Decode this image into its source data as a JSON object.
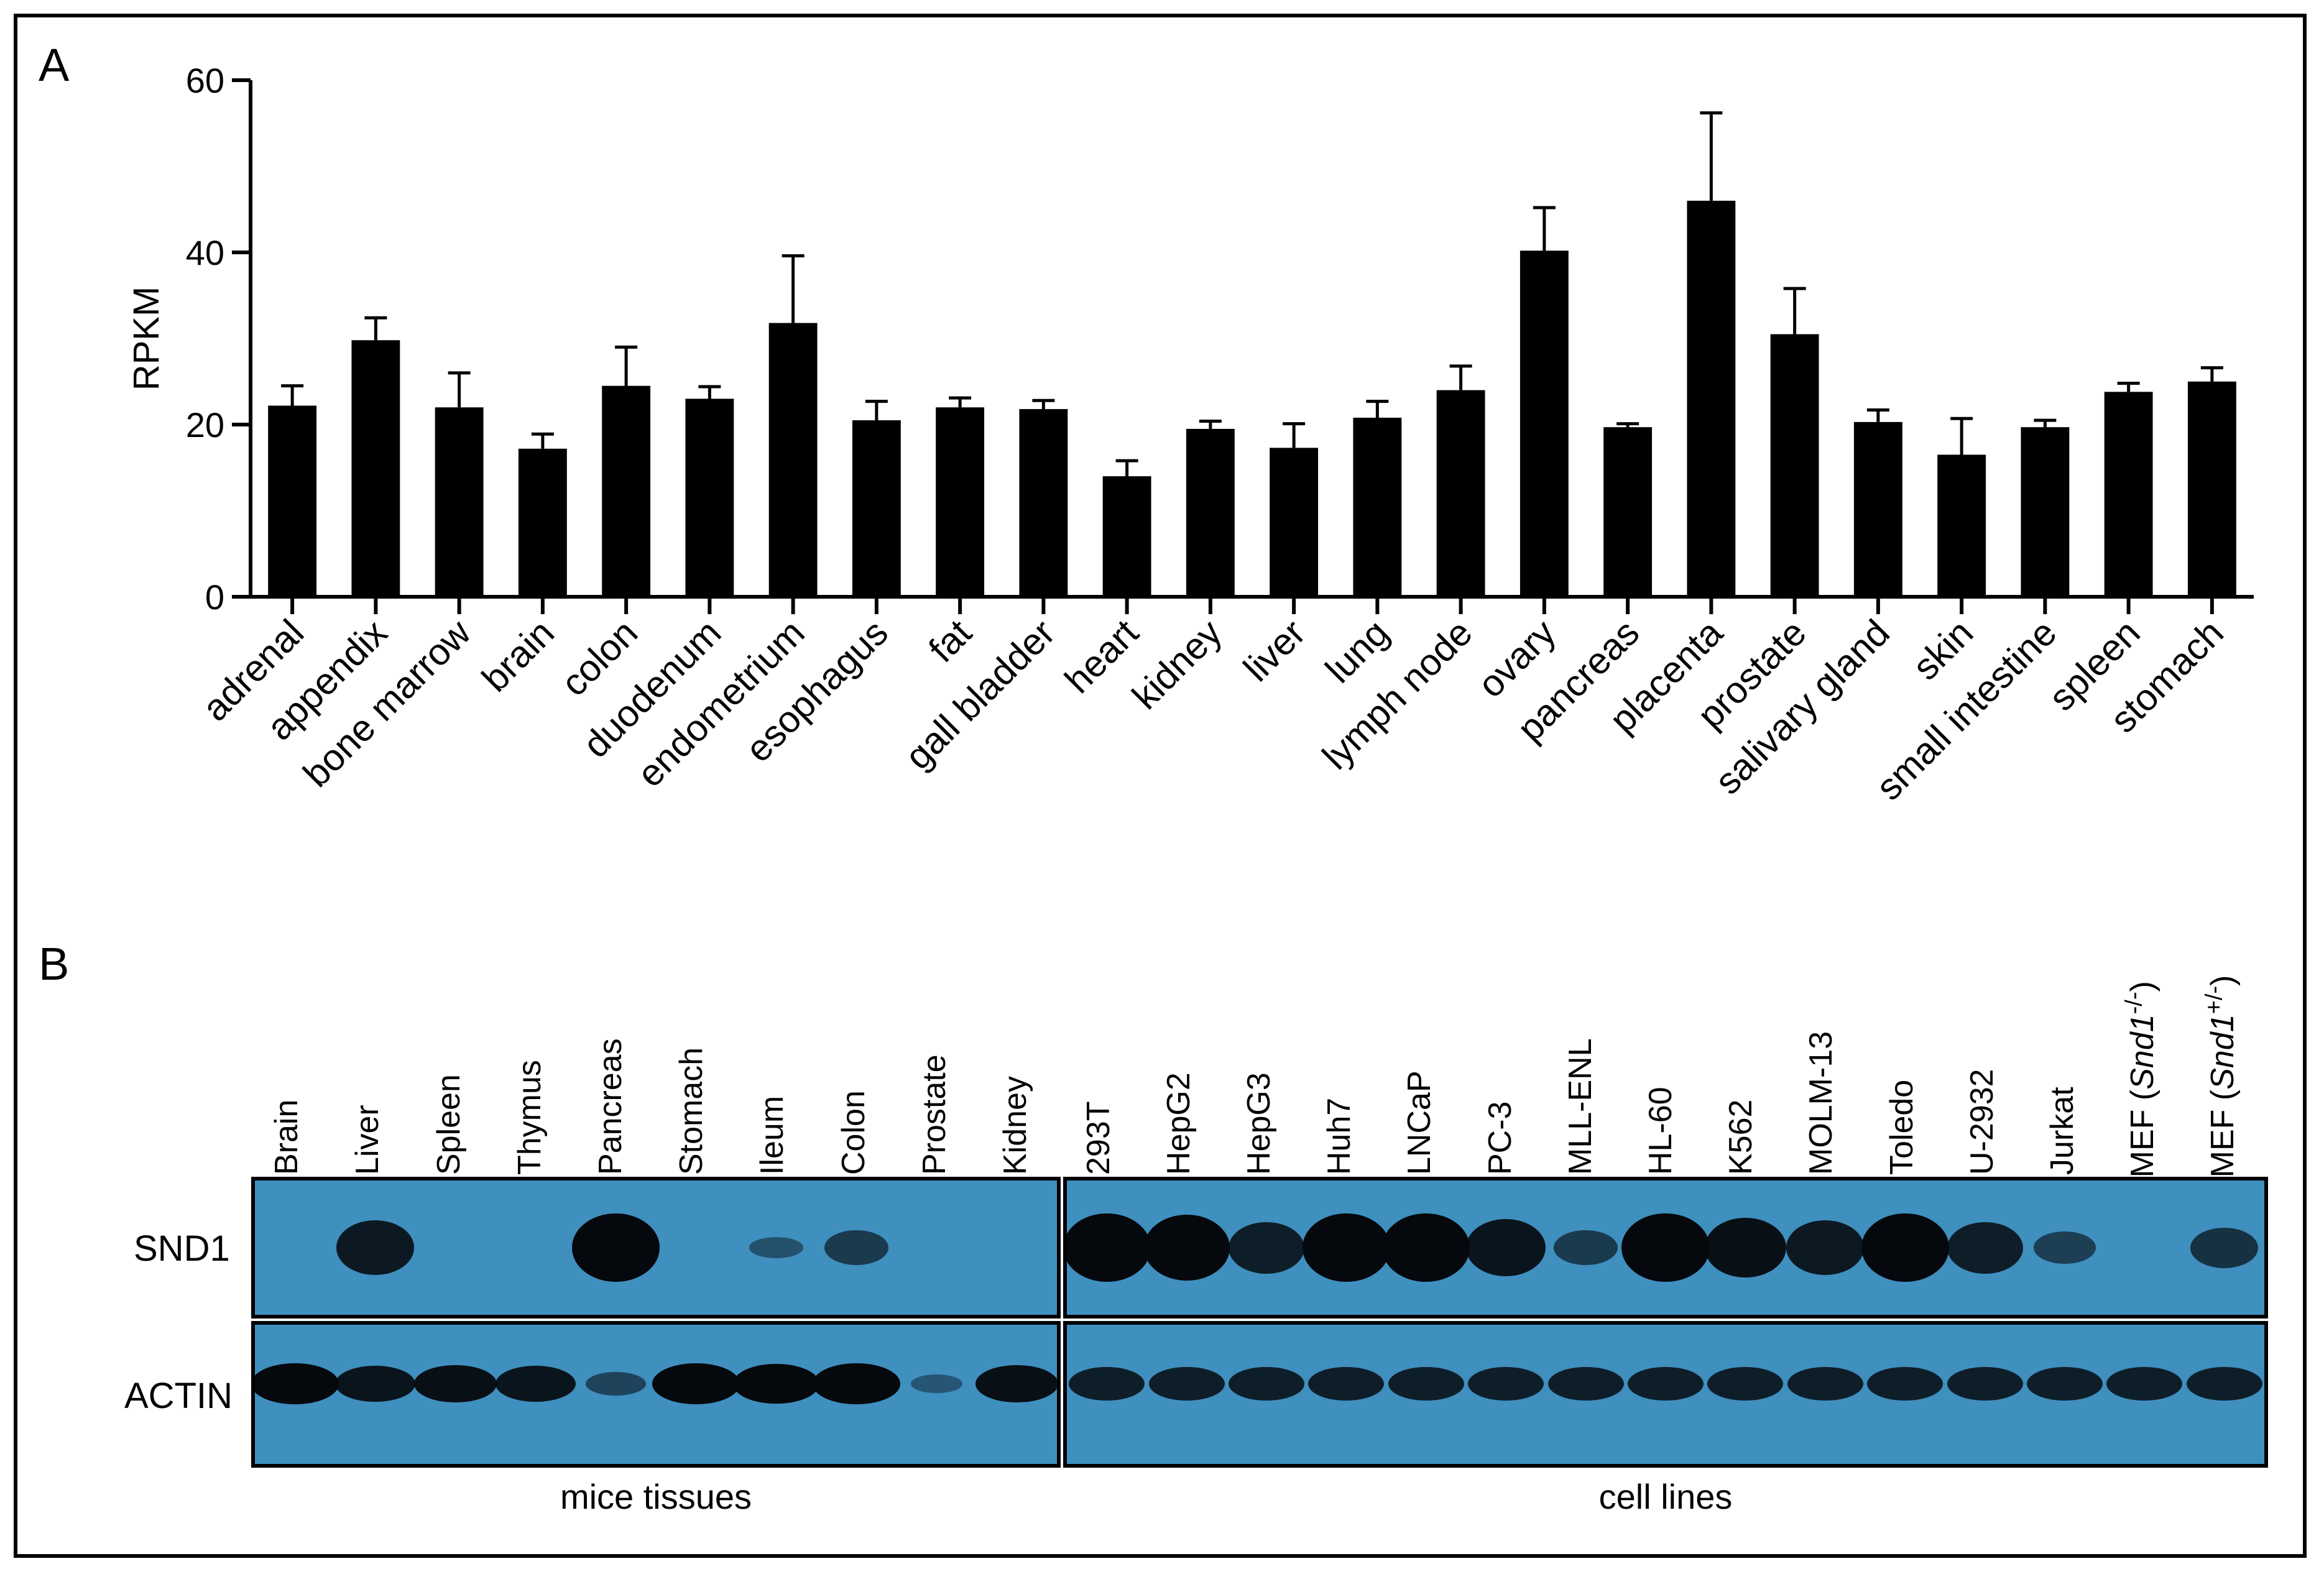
{
  "panel_a": {
    "letter": "A",
    "chart_data": {
      "type": "bar",
      "ylabel": "RPKM",
      "ylim": [
        0,
        60
      ],
      "yticks": [
        0,
        20,
        40,
        60
      ],
      "grid": false,
      "bar_color": "#000000",
      "categories": [
        "adrenal",
        "appendix",
        "bone marrow",
        "brain",
        "colon",
        "duodenum",
        "endometrium",
        "esophagus",
        "fat",
        "gall bladder",
        "heart",
        "kidney",
        "liver",
        "lung",
        "lymph node",
        "ovary",
        "pancreas",
        "placenta",
        "prostate",
        "salivary gland",
        "skin",
        "small intestine",
        "spleen",
        "stomach"
      ],
      "values": [
        22.2,
        29.8,
        22.0,
        17.2,
        24.5,
        23.0,
        31.8,
        20.5,
        22.0,
        21.8,
        14.0,
        19.5,
        17.3,
        20.8,
        24.0,
        40.2,
        19.7,
        46.0,
        30.5,
        20.3,
        16.5,
        19.7,
        23.8,
        25.0
      ],
      "errors": [
        2.3,
        2.6,
        4.0,
        1.7,
        4.5,
        1.4,
        7.8,
        2.2,
        1.1,
        1.0,
        1.8,
        0.9,
        2.8,
        1.9,
        2.8,
        5.0,
        0.4,
        10.2,
        5.3,
        1.4,
        4.2,
        0.8,
        1.0,
        1.6
      ]
    }
  },
  "panel_b": {
    "letter": "B",
    "row_labels": [
      "SND1",
      "ACTIN"
    ],
    "tissues": {
      "group_label": "mice tissues",
      "lanes": [
        "Brain",
        "Liver",
        "Spleen",
        "Thymus",
        "Pancreas",
        "Stomach",
        "Ileum",
        "Colon",
        "Prostate",
        "Kidney"
      ],
      "snd1_levels": [
        0,
        0.75,
        0,
        0,
        1.0,
        0,
        0.15,
        0.4,
        0,
        0
      ],
      "actin_levels": [
        1.0,
        0.8,
        0.85,
        0.8,
        0.3,
        1.0,
        0.95,
        1.0,
        0.1,
        0.85
      ]
    },
    "cell_lines": {
      "group_label": "cell lines",
      "lanes": [
        "293T",
        "HepG2",
        "HepG3",
        "Huh7",
        "LNCaP",
        "PC-3",
        "MLL-ENL",
        "HL-60",
        "K562",
        "MOLM-13",
        "Toledo",
        "U-2932",
        "Jurkat",
        "MEF (",
        "MEF ("
      ],
      "mef_gene": "Snd1",
      "mef_ko_sup": "-/-",
      "mef_het_sup": "+/-",
      "mef_close": ")",
      "snd1_levels": [
        1.0,
        0.95,
        0.7,
        1.0,
        1.0,
        0.8,
        0.4,
        1.0,
        0.85,
        0.75,
        1.0,
        0.7,
        0.35,
        0,
        0.5
      ],
      "actin_levels": [
        0.7,
        0.7,
        0.7,
        0.7,
        0.7,
        0.7,
        0.7,
        0.7,
        0.7,
        0.7,
        0.7,
        0.7,
        0.7,
        0.7,
        0.7
      ]
    },
    "membrane_color": "#3f8fbf",
    "band_color": "#05080c"
  }
}
